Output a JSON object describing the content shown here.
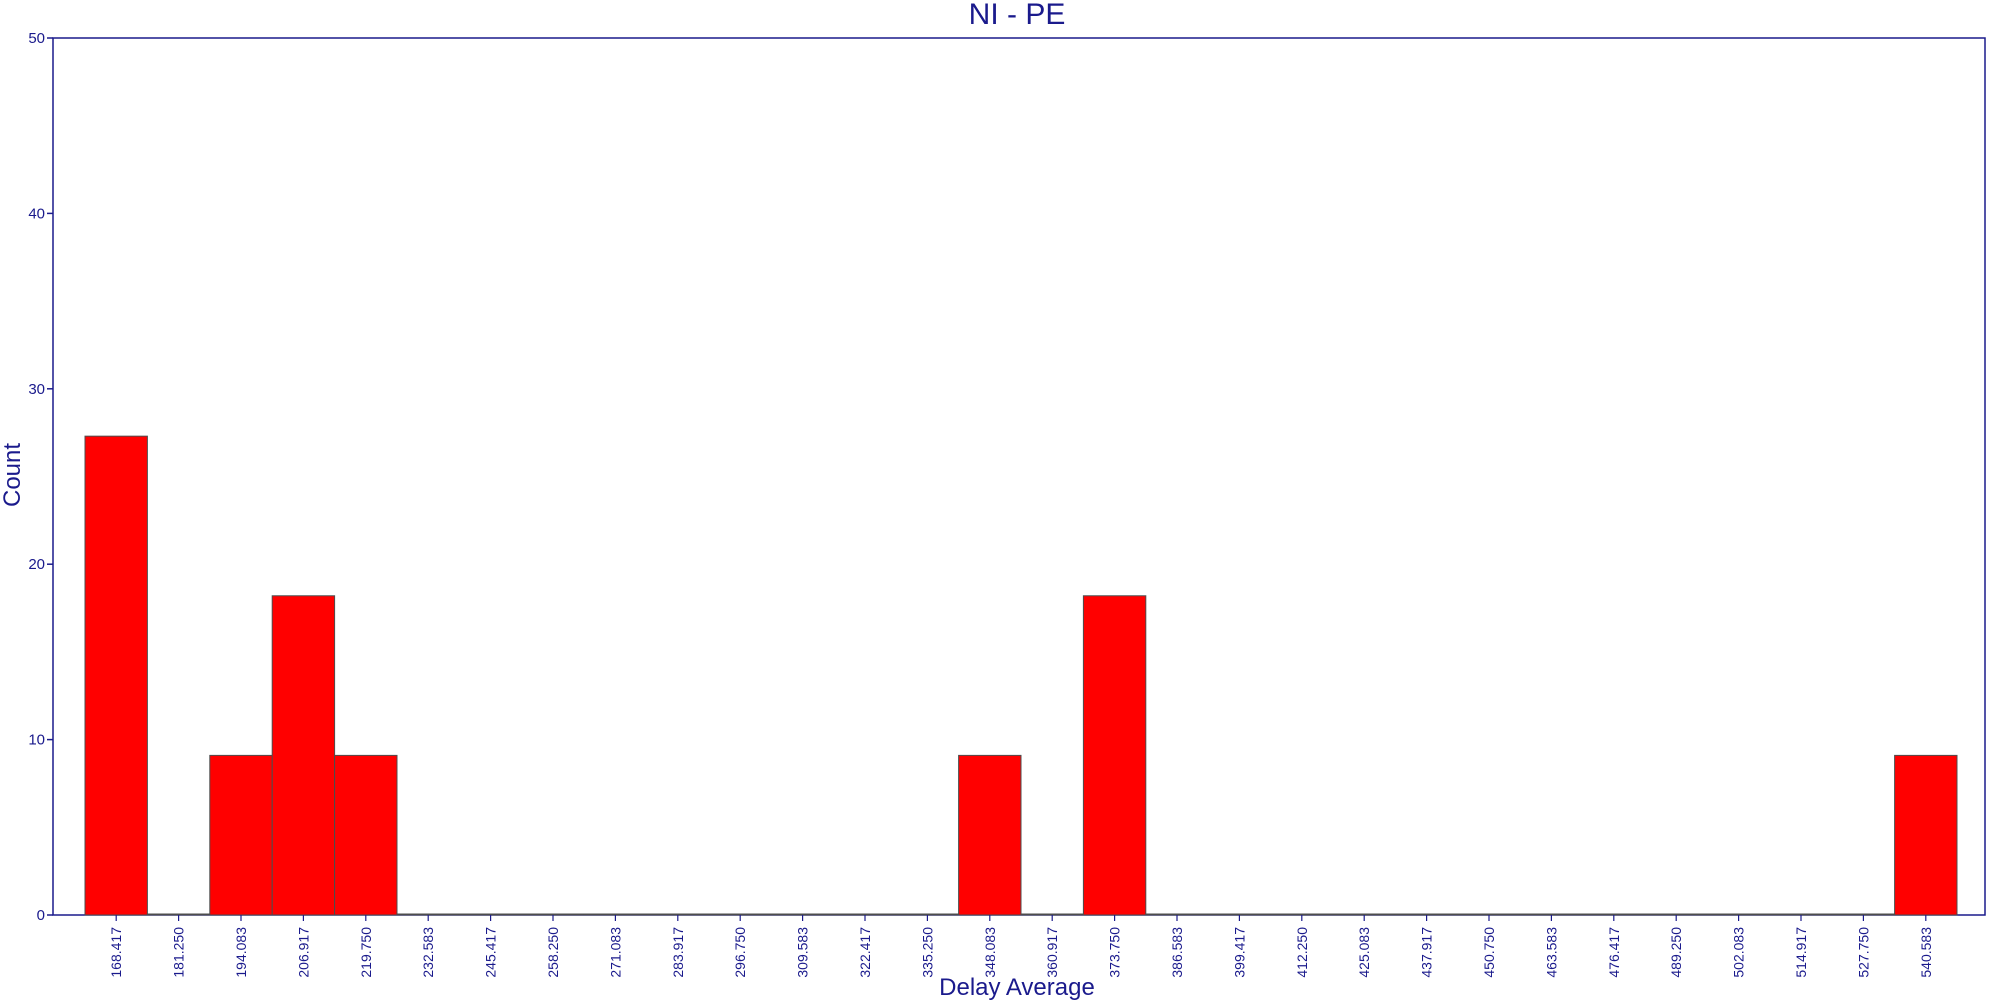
{
  "chart_data": {
    "type": "bar",
    "title": "NI - PE",
    "xlabel": "Delay Average",
    "ylabel": "Count",
    "ylim": [
      0,
      50
    ],
    "yticks": [
      0,
      10,
      20,
      30,
      40,
      50
    ],
    "grid": false,
    "categories": [
      "168.417",
      "181.250",
      "194.083",
      "206.917",
      "219.750",
      "232.583",
      "245.417",
      "258.250",
      "271.083",
      "283.917",
      "296.750",
      "309.583",
      "322.417",
      "335.250",
      "348.083",
      "360.917",
      "373.750",
      "386.583",
      "399.417",
      "412.250",
      "425.083",
      "437.917",
      "450.750",
      "463.583",
      "476.417",
      "489.250",
      "502.083",
      "514.917",
      "527.750",
      "540.583"
    ],
    "values": [
      27.3,
      0,
      9.1,
      18.2,
      9.1,
      0,
      0,
      0,
      0,
      0,
      0,
      0,
      0,
      0,
      9.1,
      0,
      18.2,
      0,
      0,
      0,
      0,
      0,
      0,
      0,
      0,
      0,
      0,
      0,
      0,
      9.1
    ],
    "colors": {
      "bar": "#ff0000",
      "axis": "#1a1a8c",
      "bar_edge": "#4d4d4d"
    }
  }
}
